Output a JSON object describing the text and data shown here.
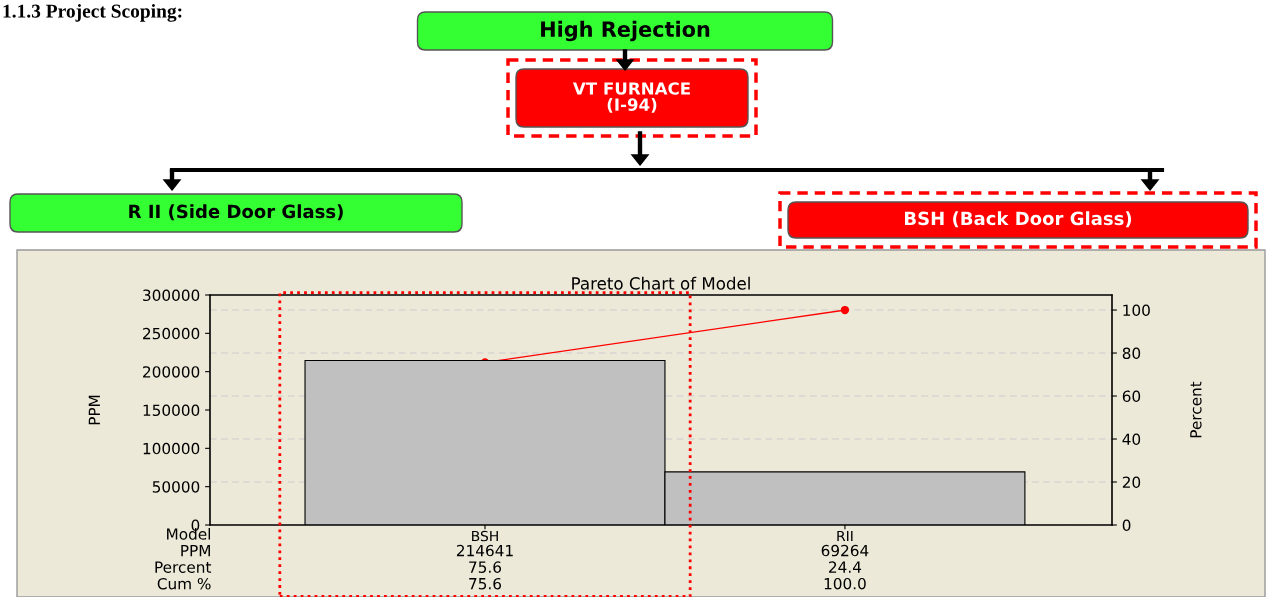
{
  "chart_data": [
    {
      "type": "other",
      "title": "1.1.3 Project Scoping:",
      "annotations": [
        "High Rejection",
        "VT FURNACE\n(I-94)",
        "R II (Side Door Glass)",
        "BSH (Back Door Glass)"
      ],
      "colors": [
        "#33ff33",
        "#ff0000",
        "#33ff33",
        "#ff0000"
      ]
    },
    {
      "type": "bar",
      "title": "Pareto Chart of Model",
      "categories": [
        "BSH",
        "RII"
      ],
      "series": [
        {
          "type": "bar",
          "color": "#c0c0c0",
          "values": [
            214641,
            69264
          ],
          "value_labels": [
            "214641",
            "69264"
          ]
        },
        {
          "type": "line",
          "axis": "y2",
          "color": "#ff0000",
          "values": [
            75.6,
            100.0
          ],
          "value_labels": [
            "75.6",
            "100.0"
          ]
        }
      ],
      "ylabel": "PPM",
      "y2label": "Percent",
      "ylim": [
        0,
        300000
      ],
      "yticks": [
        0,
        50000,
        100000,
        150000,
        200000,
        250000,
        300000
      ],
      "y2lim": [
        0,
        107
      ],
      "y2ticks": [
        0,
        20,
        40,
        60,
        80,
        100
      ],
      "grid": "y",
      "marker": "circle",
      "annotations": [
        "Model",
        "PPM",
        "Percent",
        "Cum %",
        "75.6",
        "24.4"
      ]
    }
  ]
}
